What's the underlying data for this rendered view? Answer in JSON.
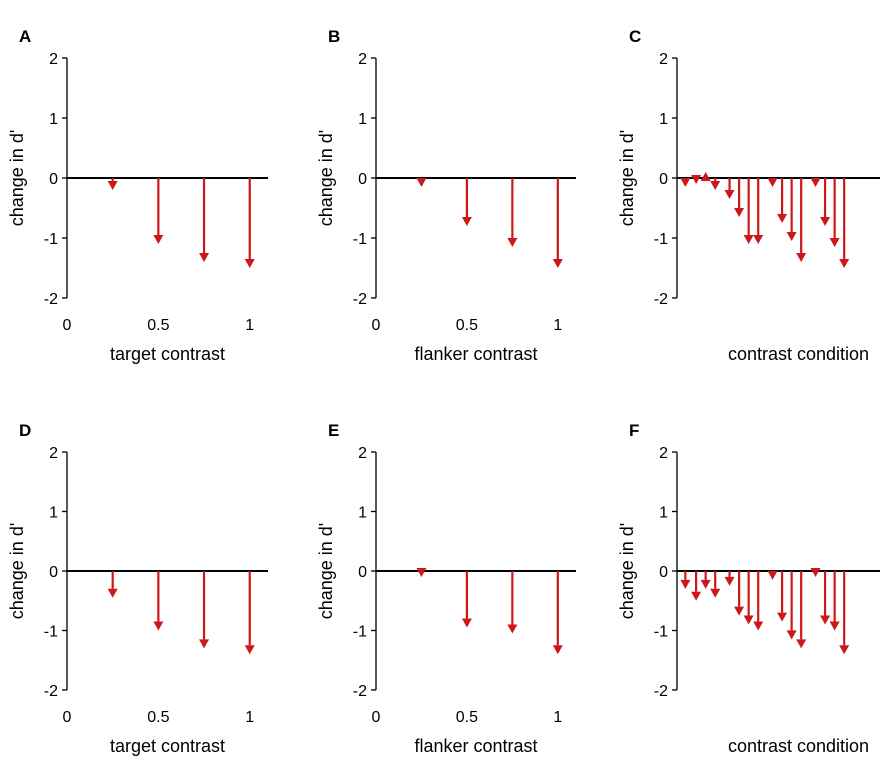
{
  "colors": {
    "arrow": "#cc1818",
    "axis": "#000000",
    "background": "#ffffff"
  },
  "chart_data": [
    {
      "panel": "A",
      "type": "arrow",
      "baseline": 0,
      "ylabel": "change in d'",
      "xlabel": "target contrast",
      "ylim": [
        -2,
        2
      ],
      "yticks": [
        "2",
        "1",
        "0",
        "-1",
        "-2"
      ],
      "xlim": [
        0,
        1.1
      ],
      "xticks": [
        "0",
        "0.5",
        "1"
      ],
      "x": [
        0.25,
        0.5,
        0.75,
        1.0
      ],
      "values": [
        -0.2,
        -1.1,
        -1.4,
        -1.5
      ]
    },
    {
      "panel": "B",
      "type": "arrow",
      "baseline": 0,
      "ylabel": "change in d'",
      "xlabel": "flanker contrast",
      "ylim": [
        -2,
        2
      ],
      "yticks": [
        "2",
        "1",
        "0",
        "-1",
        "-2"
      ],
      "xlim": [
        0,
        1.1
      ],
      "xticks": [
        "0",
        "0.5",
        "1"
      ],
      "x": [
        0.25,
        0.5,
        0.75,
        1.0
      ],
      "values": [
        -0.15,
        -0.8,
        -1.15,
        -1.5
      ]
    },
    {
      "panel": "C",
      "type": "arrow",
      "baseline": 0,
      "ylabel": "change in d'",
      "xlabel": "contrast condition",
      "ylim": [
        -2,
        2
      ],
      "yticks": [
        "2",
        "1",
        "0",
        "-1",
        "-2"
      ],
      "xlim": [
        0,
        17
      ],
      "xticks": [],
      "x": [
        0.7,
        1.6,
        2.4,
        3.2,
        4.4,
        5.2,
        6.0,
        6.8,
        8.0,
        8.8,
        9.6,
        10.4,
        11.6,
        12.4,
        13.2,
        14.0
      ],
      "values": [
        -0.15,
        -0.1,
        0.1,
        -0.2,
        -0.35,
        -0.65,
        -1.1,
        -1.1,
        -0.15,
        -0.75,
        -1.05,
        -1.4,
        -0.15,
        -0.8,
        -1.15,
        -1.5
      ]
    },
    {
      "panel": "D",
      "type": "arrow",
      "baseline": 0,
      "ylabel": "change in d'",
      "xlabel": "target contrast",
      "ylim": [
        -2,
        2
      ],
      "yticks": [
        "2",
        "1",
        "0",
        "-1",
        "-2"
      ],
      "xlim": [
        0,
        1.1
      ],
      "xticks": [
        "0",
        "0.5",
        "1"
      ],
      "x": [
        0.25,
        0.5,
        0.75,
        1.0
      ],
      "values": [
        -0.45,
        -1.0,
        -1.3,
        -1.4
      ]
    },
    {
      "panel": "E",
      "type": "arrow",
      "baseline": 0,
      "ylabel": "change in d'",
      "xlabel": "flanker contrast",
      "ylim": [
        -2,
        2
      ],
      "yticks": [
        "2",
        "1",
        "0",
        "-1",
        "-2"
      ],
      "xlim": [
        0,
        1.1
      ],
      "xticks": [
        "0",
        "0.5",
        "1"
      ],
      "x": [
        0.25,
        0.5,
        0.75,
        1.0
      ],
      "values": [
        -0.1,
        -0.95,
        -1.05,
        -1.4
      ]
    },
    {
      "panel": "F",
      "type": "arrow",
      "baseline": 0,
      "ylabel": "change in d'",
      "xlabel": "contrast condition",
      "ylim": [
        -2,
        2
      ],
      "yticks": [
        "2",
        "1",
        "0",
        "-1",
        "-2"
      ],
      "xlim": [
        0,
        17
      ],
      "xticks": [],
      "x": [
        0.7,
        1.6,
        2.4,
        3.2,
        4.4,
        5.2,
        6.0,
        6.8,
        8.0,
        8.8,
        9.6,
        10.4,
        11.6,
        12.4,
        13.2,
        14.0
      ],
      "values": [
        -0.3,
        -0.5,
        -0.3,
        -0.45,
        -0.25,
        -0.75,
        -0.9,
        -1.0,
        -0.15,
        -0.85,
        -1.15,
        -1.3,
        -0.1,
        -0.9,
        -1.0,
        -1.4
      ]
    }
  ]
}
